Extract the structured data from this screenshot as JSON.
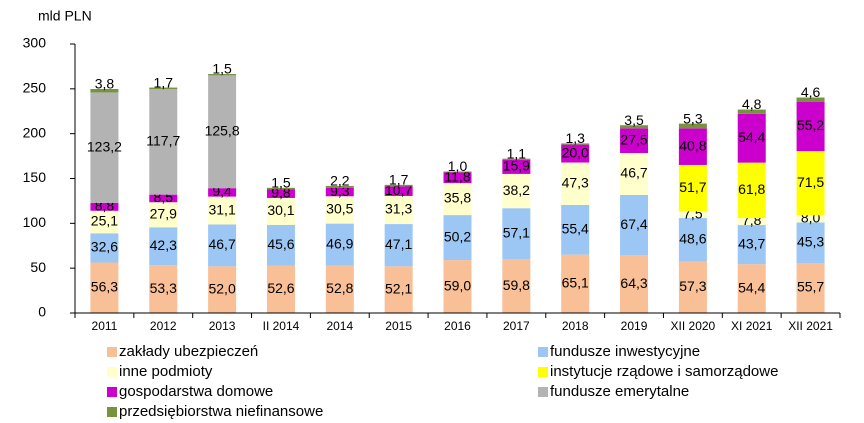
{
  "chart_data": {
    "type": "stacked-bar",
    "y_label": "mld PLN",
    "categories": [
      "2011",
      "2012",
      "2013",
      "II 2014",
      "2014",
      "2015",
      "2016",
      "2017",
      "2018",
      "2019",
      "XII 2020",
      "XI 2021",
      "XII 2021"
    ],
    "ylim": [
      0,
      300
    ],
    "yticks": [
      0,
      50,
      100,
      150,
      200,
      250,
      300
    ],
    "series": [
      {
        "name": "zakłady ubezpieczeń",
        "color": "#f9bf96",
        "values": [
          56.3,
          53.3,
          52.0,
          52.6,
          52.8,
          52.1,
          59.0,
          59.8,
          65.1,
          64.3,
          57.3,
          54.4,
          55.7
        ],
        "value_labels": [
          "56,3",
          "53,3",
          "52,0",
          "52,6",
          "52,8",
          "52,1",
          "59,0",
          "59,8",
          "65,1",
          "64,3",
          "57,3",
          "54,4",
          "55,7"
        ]
      },
      {
        "name": "fundusze inwestycyjne",
        "color": "#9cc7f5",
        "values": [
          32.6,
          42.3,
          46.7,
          45.6,
          46.9,
          47.1,
          50.2,
          57.1,
          55.4,
          67.4,
          48.6,
          43.7,
          45.3
        ],
        "value_labels": [
          "32,6",
          "42,3",
          "46,7",
          "45,6",
          "46,9",
          "47,1",
          "50,2",
          "57,1",
          "55,4",
          "67,4",
          "48,6",
          "43,7",
          "45,3"
        ]
      },
      {
        "name": "inne podmioty",
        "color": "#ffffcc",
        "values": [
          25.1,
          27.9,
          31.1,
          30.1,
          30.5,
          31.3,
          35.8,
          38.2,
          47.3,
          46.7,
          7.5,
          7.8,
          8.0
        ],
        "value_labels": [
          "25,1",
          "27,9",
          "31,1",
          "30,1",
          "30,5",
          "31,3",
          "35,8",
          "38,2",
          "47,3",
          "46,7",
          "7,5",
          "7,8",
          "8,0"
        ]
      },
      {
        "name": "instytucje rządowe i samorządowe",
        "color": "#ffff00",
        "values": [
          null,
          null,
          null,
          null,
          null,
          null,
          null,
          null,
          null,
          null,
          51.7,
          61.8,
          71.5
        ],
        "value_labels": [
          null,
          null,
          null,
          null,
          null,
          null,
          null,
          null,
          null,
          null,
          "51,7",
          "61,8",
          "71,5"
        ]
      },
      {
        "name": "gospodarstwa domowe",
        "color": "#cc00cc",
        "values": [
          8.8,
          8.5,
          9.4,
          9.8,
          9.3,
          10.7,
          11.8,
          15.9,
          20.0,
          27.5,
          40.8,
          54.4,
          55.2
        ],
        "value_labels": [
          "8,8",
          "8,5",
          "9,4",
          "9,8",
          "9,3",
          "10,7",
          "11,8",
          "15,9",
          "20,0",
          "27,5",
          "40,8",
          "54,4",
          "55,2"
        ]
      },
      {
        "name": "fundusze emerytalne",
        "color": "#b3b3b3",
        "values": [
          123.2,
          117.7,
          125.8,
          null,
          null,
          null,
          null,
          null,
          null,
          null,
          null,
          null,
          null
        ],
        "value_labels": [
          "123,2",
          "117,7",
          "125,8",
          null,
          null,
          null,
          null,
          null,
          null,
          null,
          null,
          null,
          null
        ]
      },
      {
        "name": "przedsiębiorstwa niefinansowe",
        "color": "#77933c",
        "values": [
          3.8,
          1.7,
          1.5,
          1.5,
          2.2,
          1.7,
          1.0,
          1.1,
          1.3,
          3.5,
          5.3,
          4.8,
          4.6
        ],
        "value_labels": [
          "3,8",
          "1,7",
          "1,5",
          "1,5",
          "2,2",
          "1,7",
          "1,0",
          "1,1",
          "1,3",
          "3,5",
          "5,3",
          "4,8",
          "4,6"
        ]
      }
    ]
  }
}
